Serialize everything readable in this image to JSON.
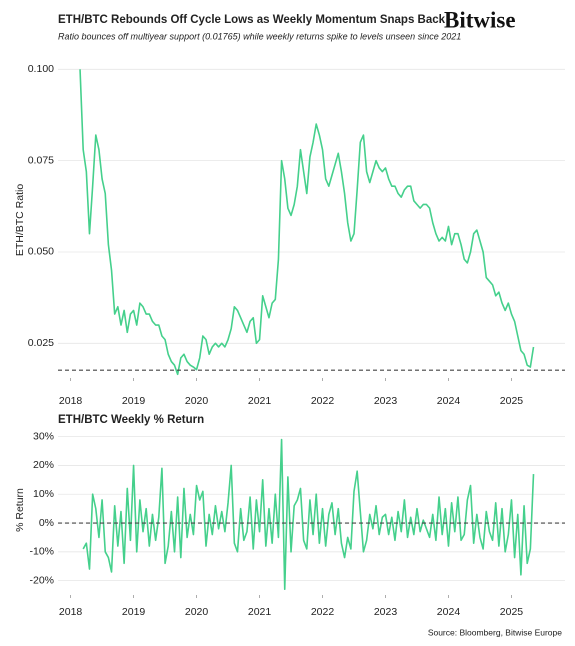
{
  "logo": "Bitwise",
  "source": "Source: Bloomberg, Bitwise Europe",
  "chart_data": [
    {
      "type": "line",
      "title": "ETH/BTC Rebounds Off Cycle Lows as Weekly Momentum Snaps Back",
      "subtitle": "Ratio bounces off multiyear support (0.01765) while weekly returns spike to levels unseen since 2021",
      "y_label": "ETH/BTC Ratio",
      "color": "#45d08c",
      "grid": true,
      "reference_line": 0.01765,
      "xlim": [
        2017.8,
        2025.85
      ],
      "xticks": [
        2018,
        2019,
        2020,
        2021,
        2022,
        2023,
        2024,
        2025
      ],
      "ylim": [
        0.0155,
        0.102
      ],
      "yticks": [
        0.025,
        {
          "value": 0.05,
          "label": "0.050"
        },
        0.075,
        {
          "value": 0.1,
          "label": "0.100"
        }
      ],
      "x": [
        2018.15,
        2018.2,
        2018.25,
        2018.3,
        2018.35,
        2018.4,
        2018.45,
        2018.5,
        2018.55,
        2018.6,
        2018.65,
        2018.7,
        2018.75,
        2018.8,
        2018.85,
        2018.9,
        2018.95,
        2019.0,
        2019.05,
        2019.1,
        2019.15,
        2019.2,
        2019.25,
        2019.3,
        2019.35,
        2019.4,
        2019.45,
        2019.5,
        2019.55,
        2019.6,
        2019.65,
        2019.7,
        2019.75,
        2019.8,
        2019.85,
        2019.9,
        2019.95,
        2020.0,
        2020.05,
        2020.1,
        2020.15,
        2020.2,
        2020.25,
        2020.3,
        2020.35,
        2020.4,
        2020.45,
        2020.5,
        2020.55,
        2020.6,
        2020.65,
        2020.7,
        2020.75,
        2020.8,
        2020.85,
        2020.9,
        2020.95,
        2021.0,
        2021.05,
        2021.1,
        2021.15,
        2021.2,
        2021.25,
        2021.3,
        2021.35,
        2021.4,
        2021.45,
        2021.5,
        2021.55,
        2021.6,
        2021.65,
        2021.7,
        2021.75,
        2021.8,
        2021.85,
        2021.9,
        2021.95,
        2022.0,
        2022.05,
        2022.1,
        2022.15,
        2022.2,
        2022.25,
        2022.3,
        2022.35,
        2022.4,
        2022.45,
        2022.5,
        2022.55,
        2022.6,
        2022.65,
        2022.7,
        2022.75,
        2022.8,
        2022.85,
        2022.9,
        2022.95,
        2023.0,
        2023.05,
        2023.1,
        2023.15,
        2023.2,
        2023.25,
        2023.3,
        2023.35,
        2023.4,
        2023.45,
        2023.5,
        2023.55,
        2023.6,
        2023.65,
        2023.7,
        2023.75,
        2023.8,
        2023.85,
        2023.9,
        2023.95,
        2024.0,
        2024.05,
        2024.1,
        2024.15,
        2024.2,
        2024.25,
        2024.3,
        2024.35,
        2024.4,
        2024.45,
        2024.5,
        2024.55,
        2024.6,
        2024.65,
        2024.7,
        2024.75,
        2024.8,
        2024.85,
        2024.9,
        2024.95,
        2025.0,
        2025.05,
        2025.1,
        2025.15,
        2025.2,
        2025.25,
        2025.3,
        2025.35
      ],
      "values": [
        0.1,
        0.078,
        0.072,
        0.055,
        0.068,
        0.082,
        0.078,
        0.07,
        0.066,
        0.052,
        0.045,
        0.033,
        0.035,
        0.03,
        0.034,
        0.028,
        0.033,
        0.034,
        0.03,
        0.036,
        0.035,
        0.033,
        0.033,
        0.031,
        0.03,
        0.03,
        0.027,
        0.026,
        0.022,
        0.02,
        0.019,
        0.0165,
        0.021,
        0.022,
        0.02,
        0.019,
        0.0185,
        0.0178,
        0.021,
        0.027,
        0.026,
        0.022,
        0.024,
        0.025,
        0.024,
        0.025,
        0.024,
        0.026,
        0.029,
        0.035,
        0.034,
        0.032,
        0.03,
        0.028,
        0.031,
        0.032,
        0.025,
        0.026,
        0.038,
        0.035,
        0.032,
        0.036,
        0.037,
        0.048,
        0.075,
        0.07,
        0.062,
        0.06,
        0.063,
        0.068,
        0.078,
        0.072,
        0.066,
        0.076,
        0.08,
        0.085,
        0.082,
        0.078,
        0.07,
        0.068,
        0.071,
        0.074,
        0.077,
        0.072,
        0.066,
        0.058,
        0.053,
        0.055,
        0.067,
        0.08,
        0.082,
        0.072,
        0.069,
        0.072,
        0.075,
        0.073,
        0.072,
        0.073,
        0.07,
        0.068,
        0.068,
        0.066,
        0.065,
        0.067,
        0.068,
        0.068,
        0.064,
        0.063,
        0.062,
        0.063,
        0.063,
        0.062,
        0.058,
        0.055,
        0.053,
        0.054,
        0.053,
        0.057,
        0.052,
        0.055,
        0.055,
        0.052,
        0.048,
        0.047,
        0.05,
        0.055,
        0.056,
        0.053,
        0.05,
        0.043,
        0.042,
        0.041,
        0.038,
        0.039,
        0.036,
        0.034,
        0.036,
        0.033,
        0.031,
        0.027,
        0.023,
        0.022,
        0.019,
        0.0185,
        0.024
      ]
    },
    {
      "type": "line",
      "title": "ETH/BTC Weekly % Return",
      "y_label": "% Return",
      "color": "#45d08c",
      "grid": true,
      "reference_line": 0,
      "xlim": [
        2017.8,
        2025.85
      ],
      "xticks": [
        2018,
        2019,
        2020,
        2021,
        2022,
        2023,
        2024,
        2025
      ],
      "ylim": [
        -25,
        33
      ],
      "yticks": [
        {
          "value": -20,
          "label": "-20%"
        },
        {
          "value": -10,
          "label": "-10%"
        },
        {
          "value": 0,
          "label": "0%"
        },
        {
          "value": 10,
          "label": "10%"
        },
        {
          "value": 20,
          "label": "20%"
        },
        {
          "value": 30,
          "label": "30%"
        }
      ],
      "x": [
        2018.2,
        2018.25,
        2018.3,
        2018.35,
        2018.4,
        2018.45,
        2018.5,
        2018.55,
        2018.6,
        2018.65,
        2018.7,
        2018.75,
        2018.8,
        2018.85,
        2018.9,
        2018.95,
        2019.0,
        2019.05,
        2019.1,
        2019.15,
        2019.2,
        2019.25,
        2019.3,
        2019.35,
        2019.4,
        2019.45,
        2019.5,
        2019.55,
        2019.6,
        2019.65,
        2019.7,
        2019.75,
        2019.8,
        2019.85,
        2019.9,
        2019.95,
        2020.0,
        2020.05,
        2020.1,
        2020.15,
        2020.2,
        2020.25,
        2020.3,
        2020.35,
        2020.4,
        2020.45,
        2020.5,
        2020.55,
        2020.6,
        2020.65,
        2020.7,
        2020.75,
        2020.8,
        2020.85,
        2020.9,
        2020.95,
        2021.0,
        2021.05,
        2021.1,
        2021.15,
        2021.2,
        2021.25,
        2021.3,
        2021.35,
        2021.4,
        2021.45,
        2021.5,
        2021.55,
        2021.6,
        2021.65,
        2021.7,
        2021.75,
        2021.8,
        2021.85,
        2021.9,
        2021.95,
        2022.0,
        2022.05,
        2022.1,
        2022.15,
        2022.2,
        2022.25,
        2022.3,
        2022.35,
        2022.4,
        2022.45,
        2022.5,
        2022.55,
        2022.6,
        2022.65,
        2022.7,
        2022.75,
        2022.8,
        2022.85,
        2022.9,
        2022.95,
        2023.0,
        2023.05,
        2023.1,
        2023.15,
        2023.2,
        2023.25,
        2023.3,
        2023.35,
        2023.4,
        2023.45,
        2023.5,
        2023.55,
        2023.6,
        2023.65,
        2023.7,
        2023.75,
        2023.8,
        2023.85,
        2023.9,
        2023.95,
        2024.0,
        2024.05,
        2024.1,
        2024.15,
        2024.2,
        2024.25,
        2024.3,
        2024.35,
        2024.4,
        2024.45,
        2024.5,
        2024.55,
        2024.6,
        2024.65,
        2024.7,
        2024.75,
        2024.8,
        2024.85,
        2024.9,
        2024.95,
        2025.0,
        2025.05,
        2025.1,
        2025.15,
        2025.2,
        2025.25,
        2025.3,
        2025.35
      ],
      "values": [
        -9,
        -7,
        -16,
        10,
        5,
        -5,
        8,
        -10,
        -12,
        -17,
        6,
        -8,
        4,
        -14,
        12,
        -6,
        20,
        -10,
        8,
        -3,
        5,
        -8,
        3,
        -6,
        2,
        19,
        -14,
        -8,
        4,
        -10,
        9,
        -12,
        12,
        -5,
        3,
        -4,
        13,
        8,
        11,
        -8,
        3,
        -4,
        6,
        -2,
        4,
        -3,
        7,
        20,
        -7,
        -10,
        5,
        -6,
        -3,
        9,
        -9,
        8,
        -3,
        15,
        -8,
        5,
        -7,
        10,
        -5,
        29,
        -23,
        16,
        -10,
        6,
        8,
        12,
        -6,
        -9,
        8,
        -4,
        10,
        -7,
        5,
        -8,
        3,
        7,
        -4,
        5,
        -7,
        -12,
        -5,
        -9,
        11,
        18,
        4,
        -10,
        -6,
        3,
        -2,
        6,
        -4,
        2,
        3,
        -4,
        2,
        -6,
        4,
        -3,
        8,
        -5,
        2,
        -4,
        5,
        -3,
        1,
        -2,
        -5,
        3,
        -6,
        9,
        -4,
        5,
        -8,
        7,
        -3,
        9,
        -6,
        -4,
        8,
        13,
        -7,
        3,
        -5,
        -9,
        4,
        -3,
        -6,
        7,
        -8,
        5,
        -10,
        -4,
        8,
        -12,
        3,
        -18,
        6,
        -14,
        -9,
        17
      ]
    }
  ]
}
